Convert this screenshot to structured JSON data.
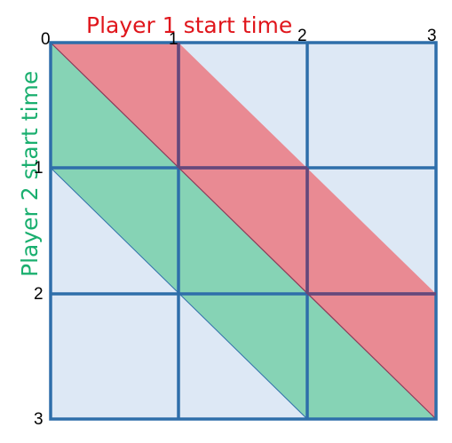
{
  "diagram": {
    "x_axis_title": "Player 1 start time",
    "y_axis_title": "Player 2 start time",
    "x_ticks": [
      "0",
      "1",
      "2",
      "3"
    ],
    "y_ticks": [
      "1",
      "2",
      "3"
    ],
    "colors": {
      "background": "#dde8f5",
      "grid": "#2e6eaa",
      "player1_region": "#e98a93",
      "player2_region": "#86d3b5",
      "player1_text": "#e0161c",
      "player2_text": "#1aaf6f",
      "diagonal": "#8b3a5a"
    }
  }
}
